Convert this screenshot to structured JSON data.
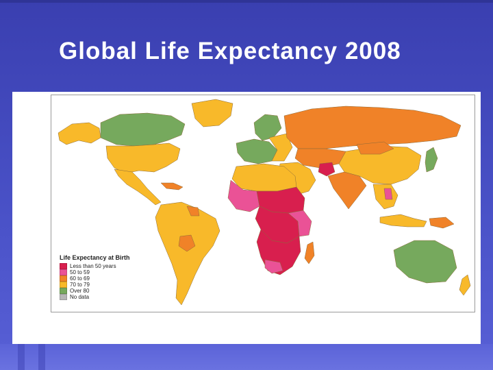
{
  "slide": {
    "title": "Global Life Expectancy 2008"
  },
  "map": {
    "legend": {
      "title": "Life Expectancy at Birth",
      "items": [
        {
          "label": "Less than 50 years",
          "color": "#d81f4e"
        },
        {
          "label": "50 to 59",
          "color": "#ea5296"
        },
        {
          "label": "60 to 69",
          "color": "#f08228"
        },
        {
          "label": "70 to 79",
          "color": "#f8b92a"
        },
        {
          "label": "Over 80",
          "color": "#76a95d"
        },
        {
          "label": "No data",
          "color": "#b6b6b6"
        }
      ]
    },
    "colors": {
      "ocean": "#ffffff",
      "border": "#8a6a3a"
    }
  }
}
